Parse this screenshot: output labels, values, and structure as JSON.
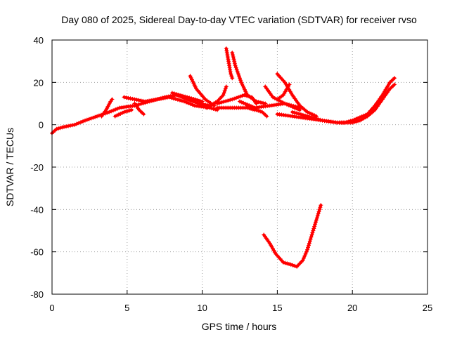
{
  "chart_data": {
    "type": "scatter",
    "title": "Day 080 of 2025, Sidereal Day-to-day VTEC variation (SDTVAR) for receiver rvso",
    "xlabel": "GPS time / hours",
    "ylabel": "SDTVAR / TECUs",
    "xlim": [
      0,
      25
    ],
    "ylim": [
      -80,
      40
    ],
    "xticks": [
      0,
      5,
      10,
      15,
      20,
      25
    ],
    "yticks": [
      -80,
      -60,
      -40,
      -20,
      0,
      20,
      40
    ],
    "grid": true,
    "marker": "+",
    "color": "#ff0000",
    "series": [
      {
        "name": "arc-1",
        "points": [
          [
            0.0,
            -4
          ],
          [
            0.3,
            -2
          ],
          [
            0.8,
            -1
          ],
          [
            1.5,
            0
          ],
          [
            2.2,
            2
          ],
          [
            3.0,
            4
          ],
          [
            3.8,
            6
          ],
          [
            4.5,
            8
          ],
          [
            5.5,
            9
          ],
          [
            6.5,
            11
          ],
          [
            7.5,
            13
          ],
          [
            8.3,
            14
          ],
          [
            9.0,
            12
          ],
          [
            9.8,
            10
          ],
          [
            10.5,
            9
          ]
        ]
      },
      {
        "name": "arc-2",
        "points": [
          [
            3.3,
            4
          ],
          [
            3.6,
            7
          ],
          [
            3.9,
            11
          ],
          [
            4.0,
            12
          ]
        ]
      },
      {
        "name": "arc-3",
        "points": [
          [
            4.2,
            4
          ],
          [
            4.8,
            6
          ],
          [
            5.3,
            7
          ]
        ]
      },
      {
        "name": "arc-4",
        "points": [
          [
            4.8,
            13
          ],
          [
            5.5,
            12
          ],
          [
            6.2,
            11
          ],
          [
            7.0,
            12
          ],
          [
            7.8,
            13
          ],
          [
            8.8,
            11
          ],
          [
            9.5,
            9
          ],
          [
            10.5,
            8
          ],
          [
            11.0,
            7
          ]
        ]
      },
      {
        "name": "arc-5",
        "points": [
          [
            5.5,
            10
          ],
          [
            5.8,
            7
          ],
          [
            6.1,
            5
          ]
        ]
      },
      {
        "name": "arc-6",
        "points": [
          [
            8.0,
            15
          ],
          [
            9.0,
            13
          ],
          [
            10.0,
            11
          ]
        ]
      },
      {
        "name": "arc-7",
        "points": [
          [
            9.2,
            23
          ],
          [
            9.6,
            17
          ],
          [
            10.2,
            12
          ],
          [
            10.8,
            9
          ]
        ]
      },
      {
        "name": "arc-8",
        "points": [
          [
            10.3,
            8
          ],
          [
            11.0,
            11
          ],
          [
            11.4,
            14
          ],
          [
            11.6,
            18
          ]
        ]
      },
      {
        "name": "arc-9",
        "points": [
          [
            11.6,
            36
          ],
          [
            11.75,
            30
          ],
          [
            11.9,
            24
          ],
          [
            12.0,
            22
          ]
        ]
      },
      {
        "name": "arc-10",
        "points": [
          [
            12.0,
            34
          ],
          [
            12.2,
            28
          ],
          [
            12.4,
            24
          ],
          [
            12.6,
            20
          ],
          [
            13.0,
            14
          ],
          [
            13.6,
            11
          ],
          [
            14.2,
            10
          ]
        ]
      },
      {
        "name": "arc-11",
        "points": [
          [
            11.0,
            10
          ],
          [
            12.0,
            12
          ],
          [
            12.8,
            14
          ],
          [
            13.3,
            13
          ],
          [
            13.6,
            10
          ]
        ]
      },
      {
        "name": "arc-12",
        "points": [
          [
            11.0,
            8
          ],
          [
            12.0,
            8
          ],
          [
            13.0,
            8
          ],
          [
            13.5,
            7
          ]
        ]
      },
      {
        "name": "arc-13",
        "points": [
          [
            12.5,
            11
          ],
          [
            13.5,
            8
          ],
          [
            14.5,
            9
          ],
          [
            15.5,
            10
          ],
          [
            16.5,
            7
          ]
        ]
      },
      {
        "name": "arc-14",
        "points": [
          [
            13.0,
            9
          ],
          [
            13.6,
            7
          ],
          [
            14.0,
            6
          ],
          [
            14.3,
            4
          ]
        ]
      },
      {
        "name": "arc-15",
        "points": [
          [
            14.2,
            18
          ],
          [
            14.7,
            13
          ],
          [
            15.5,
            10
          ],
          [
            16.5,
            8
          ]
        ]
      },
      {
        "name": "arc-16",
        "points": [
          [
            15.0,
            24
          ],
          [
            15.5,
            20
          ],
          [
            16.0,
            14
          ],
          [
            16.5,
            9
          ],
          [
            17.0,
            6
          ],
          [
            17.6,
            4
          ]
        ]
      },
      {
        "name": "arc-17",
        "points": [
          [
            15.8,
            19
          ],
          [
            15.4,
            14
          ],
          [
            15.0,
            12
          ]
        ]
      },
      {
        "name": "arc-18",
        "points": [
          [
            15.0,
            5
          ],
          [
            16.0,
            4
          ],
          [
            17.0,
            3
          ],
          [
            18.0,
            2
          ],
          [
            19.0,
            1
          ],
          [
            20.0,
            1
          ],
          [
            20.5,
            2
          ],
          [
            21.0,
            4
          ],
          [
            21.5,
            7
          ],
          [
            22.0,
            12
          ],
          [
            22.5,
            17
          ],
          [
            22.8,
            19
          ]
        ]
      },
      {
        "name": "arc-19",
        "points": [
          [
            16.0,
            6
          ],
          [
            17.0,
            4
          ],
          [
            18.0,
            2
          ],
          [
            19.0,
            1
          ],
          [
            19.5,
            1
          ],
          [
            20.0,
            2
          ],
          [
            21.0,
            5
          ],
          [
            21.5,
            9
          ],
          [
            22.0,
            14
          ],
          [
            22.5,
            20
          ],
          [
            22.8,
            22
          ]
        ]
      },
      {
        "name": "arc-20",
        "points": [
          [
            14.1,
            -52
          ],
          [
            14.5,
            -56
          ],
          [
            14.9,
            -61
          ],
          [
            15.4,
            -65
          ],
          [
            15.9,
            -66
          ],
          [
            16.3,
            -67
          ],
          [
            16.7,
            -64
          ],
          [
            17.0,
            -59
          ],
          [
            17.3,
            -52
          ],
          [
            17.6,
            -45
          ],
          [
            17.9,
            -38
          ]
        ]
      }
    ]
  }
}
